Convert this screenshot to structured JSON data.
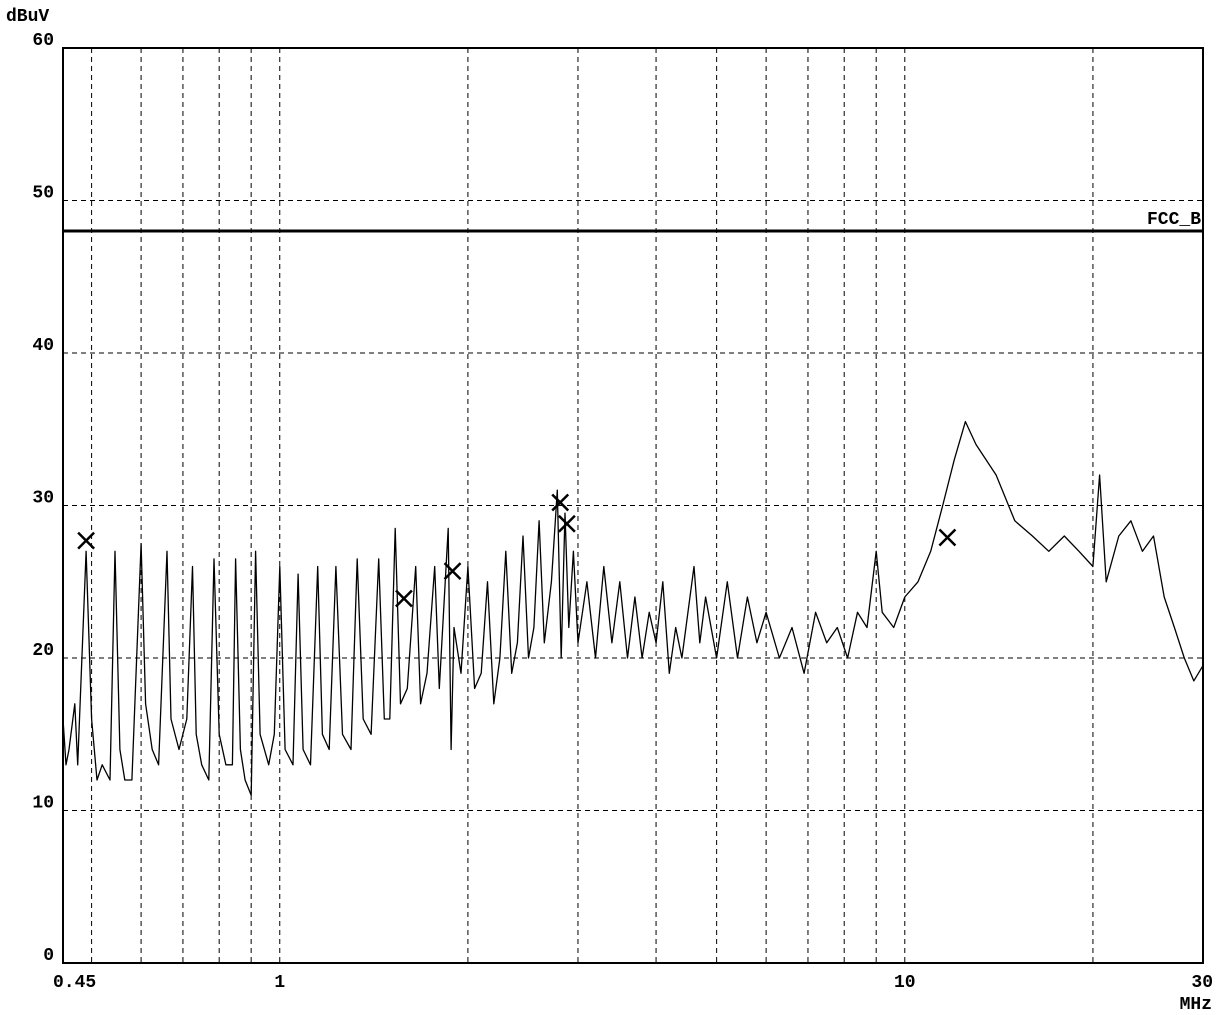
{
  "chart_data": {
    "type": "line",
    "y_label": "dBuV",
    "x_label": "MHz",
    "log_x": true,
    "grid": true,
    "xlim": [
      0.45,
      30
    ],
    "ylim": [
      0,
      60
    ],
    "xticks": [
      0.45,
      1,
      10,
      30
    ],
    "xminor": [
      0.5,
      0.6,
      0.7,
      0.8,
      0.9,
      2,
      3,
      4,
      5,
      6,
      7,
      8,
      9,
      20
    ],
    "yticks": [
      0,
      10,
      20,
      30,
      40,
      50,
      60
    ],
    "limit_line": {
      "name": "FCC_B",
      "value": 48,
      "color": "#000000"
    },
    "markers": {
      "x": [
        0.49,
        1.58,
        1.89,
        2.81,
        2.88,
        11.7
      ],
      "values": [
        27.7,
        23.9,
        25.7,
        30.2,
        28.8,
        27.9
      ],
      "color": "#000000"
    },
    "trace": {
      "color": "#000000",
      "x": [
        0.45,
        0.455,
        0.46,
        0.47,
        0.475,
        0.49,
        0.5,
        0.51,
        0.52,
        0.535,
        0.545,
        0.555,
        0.565,
        0.58,
        0.6,
        0.61,
        0.625,
        0.64,
        0.66,
        0.67,
        0.69,
        0.71,
        0.725,
        0.735,
        0.75,
        0.77,
        0.785,
        0.8,
        0.82,
        0.84,
        0.85,
        0.865,
        0.88,
        0.9,
        0.915,
        0.93,
        0.96,
        0.98,
        1.0,
        1.02,
        1.05,
        1.07,
        1.09,
        1.12,
        1.15,
        1.17,
        1.2,
        1.23,
        1.26,
        1.3,
        1.33,
        1.36,
        1.4,
        1.44,
        1.47,
        1.5,
        1.53,
        1.56,
        1.6,
        1.65,
        1.68,
        1.72,
        1.77,
        1.8,
        1.86,
        1.88,
        1.9,
        1.95,
        2.0,
        2.05,
        2.1,
        2.15,
        2.2,
        2.25,
        2.3,
        2.35,
        2.4,
        2.45,
        2.5,
        2.55,
        2.6,
        2.65,
        2.72,
        2.78,
        2.82,
        2.86,
        2.9,
        2.95,
        3.0,
        3.1,
        3.2,
        3.3,
        3.4,
        3.5,
        3.6,
        3.7,
        3.8,
        3.9,
        4.0,
        4.1,
        4.2,
        4.3,
        4.4,
        4.6,
        4.7,
        4.8,
        5.0,
        5.2,
        5.4,
        5.6,
        5.8,
        6.0,
        6.3,
        6.6,
        6.9,
        7.2,
        7.5,
        7.8,
        8.1,
        8.4,
        8.7,
        9.0,
        9.2,
        9.6,
        10.0,
        10.5,
        11,
        11.5,
        12,
        12.5,
        13,
        14,
        15,
        16,
        17,
        18,
        19,
        20,
        20.5,
        21,
        22,
        23,
        24,
        25,
        26,
        27,
        28,
        29,
        30
      ],
      "values": [
        16,
        13,
        14,
        17,
        13,
        27,
        16,
        12,
        13,
        12,
        27,
        14,
        12,
        12,
        27.5,
        17,
        14,
        13,
        27,
        16,
        14,
        16,
        26,
        15,
        13,
        12,
        26.5,
        15,
        13,
        13,
        26.5,
        14,
        12,
        11,
        27,
        15,
        13,
        15,
        26,
        14,
        13,
        25.5,
        14,
        13,
        26,
        15,
        14,
        26,
        15,
        14,
        26.5,
        16,
        15,
        26.5,
        16,
        16,
        28.5,
        17,
        18,
        26,
        17,
        19,
        26,
        18,
        28.5,
        14,
        22,
        19,
        26,
        18,
        19,
        25,
        17,
        20,
        27,
        19,
        21,
        28,
        20,
        22,
        29,
        21,
        25,
        31,
        20,
        29.5,
        22,
        27,
        21,
        25,
        20,
        26,
        21,
        25,
        20,
        24,
        20,
        23,
        21,
        25,
        19,
        22,
        20,
        26,
        21,
        24,
        20,
        25,
        20,
        24,
        21,
        23,
        20,
        22,
        19,
        23,
        21,
        22,
        20,
        23,
        22,
        27,
        23,
        22,
        24,
        25,
        27,
        30,
        33,
        35.5,
        34,
        32,
        29,
        28,
        27,
        28,
        27,
        26,
        32,
        25,
        28,
        29,
        27,
        28,
        24,
        22,
        20,
        18.5,
        19.5
      ]
    }
  }
}
